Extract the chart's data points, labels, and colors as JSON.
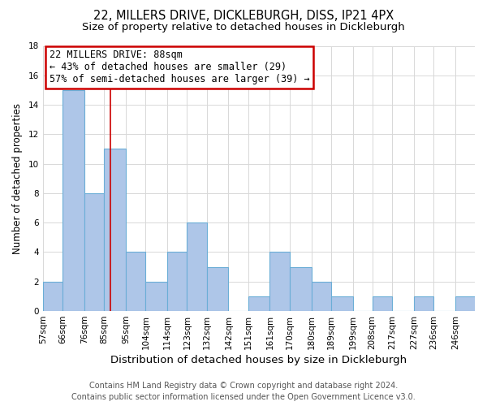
{
  "title": "22, MILLERS DRIVE, DICKLEBURGH, DISS, IP21 4PX",
  "subtitle": "Size of property relative to detached houses in Dickleburgh",
  "xlabel": "Distribution of detached houses by size in Dickleburgh",
  "ylabel": "Number of detached properties",
  "bin_labels": [
    "57sqm",
    "66sqm",
    "76sqm",
    "85sqm",
    "95sqm",
    "104sqm",
    "114sqm",
    "123sqm",
    "132sqm",
    "142sqm",
    "151sqm",
    "161sqm",
    "170sqm",
    "180sqm",
    "189sqm",
    "199sqm",
    "208sqm",
    "217sqm",
    "227sqm",
    "236sqm",
    "246sqm"
  ],
  "bar_heights": [
    2,
    15,
    8,
    11,
    4,
    2,
    4,
    6,
    3,
    0,
    1,
    4,
    3,
    2,
    1,
    0,
    1,
    0,
    1,
    0,
    1
  ],
  "bar_color": "#aec6e8",
  "bar_edge_color": "#6baed6",
  "bin_edges": [
    57,
    66,
    76,
    85,
    95,
    104,
    114,
    123,
    132,
    142,
    151,
    161,
    170,
    180,
    189,
    199,
    208,
    217,
    227,
    236,
    246,
    255
  ],
  "property_size": 88,
  "annotation_box_text_line1": "22 MILLERS DRIVE: 88sqm",
  "annotation_box_text_line2": "← 43% of detached houses are smaller (29)",
  "annotation_box_text_line3": "57% of semi-detached houses are larger (39) →",
  "annotation_box_color": "#ffffff",
  "annotation_box_edge_color": "#cc0000",
  "ylim": [
    0,
    18
  ],
  "yticks": [
    0,
    2,
    4,
    6,
    8,
    10,
    12,
    14,
    16,
    18
  ],
  "grid_color": "#d8d8d8",
  "footer_line1": "Contains HM Land Registry data © Crown copyright and database right 2024.",
  "footer_line2": "Contains public sector information licensed under the Open Government Licence v3.0.",
  "title_fontsize": 10.5,
  "subtitle_fontsize": 9.5,
  "xlabel_fontsize": 9.5,
  "ylabel_fontsize": 8.5,
  "tick_fontsize": 7.5,
  "annotation_fontsize": 8.5,
  "footer_fontsize": 7
}
